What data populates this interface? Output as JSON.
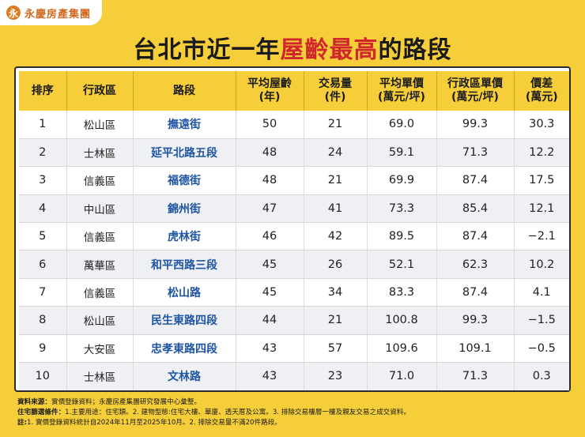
{
  "brand": {
    "name": "永慶房產集團",
    "mark": "永"
  },
  "title": {
    "prefix": "台北市近一年",
    "highlight": "屋齡最高",
    "suffix": "的路段"
  },
  "table": {
    "headers": [
      {
        "line1": "排序",
        "line2": ""
      },
      {
        "line1": "行政區",
        "line2": ""
      },
      {
        "line1": "路段",
        "line2": ""
      },
      {
        "line1": "平均屋齡",
        "line2": "(年)"
      },
      {
        "line1": "交易量",
        "line2": "(件)"
      },
      {
        "line1": "平均單價",
        "line2": "(萬元/坪)"
      },
      {
        "line1": "行政區單價",
        "line2": "(萬元/坪)"
      },
      {
        "line1": "價差",
        "line2": "(萬元)"
      }
    ],
    "rows": [
      [
        "1",
        "松山區",
        "撫遠街",
        "50",
        "21",
        "69.0",
        "99.3",
        "30.3"
      ],
      [
        "2",
        "士林區",
        "延平北路五段",
        "48",
        "24",
        "59.1",
        "71.3",
        "12.2"
      ],
      [
        "3",
        "信義區",
        "福德街",
        "48",
        "21",
        "69.9",
        "87.4",
        "17.5"
      ],
      [
        "4",
        "中山區",
        "錦州街",
        "47",
        "41",
        "73.3",
        "85.4",
        "12.1"
      ],
      [
        "5",
        "信義區",
        "虎林街",
        "46",
        "42",
        "89.5",
        "87.4",
        "−2.1"
      ],
      [
        "6",
        "萬華區",
        "和平西路三段",
        "45",
        "26",
        "52.1",
        "62.3",
        "10.2"
      ],
      [
        "7",
        "信義區",
        "松山路",
        "45",
        "34",
        "83.3",
        "87.4",
        "4.1"
      ],
      [
        "8",
        "松山區",
        "民生東路四段",
        "44",
        "21",
        "100.8",
        "99.3",
        "−1.5"
      ],
      [
        "9",
        "大安區",
        "忠孝東路四段",
        "43",
        "57",
        "109.6",
        "109.1",
        "−0.5"
      ],
      [
        "10",
        "士林區",
        "文林路",
        "43",
        "23",
        "71.0",
        "71.3",
        "0.3"
      ]
    ]
  },
  "notes": [
    {
      "label": "資料來源：",
      "text": "實價登錄資料；永慶房產集團研究發展中心彙整。"
    },
    {
      "label": "住宅篩選條件：",
      "text": "1.主要用途：住宅類。2. 建物型態:住宅大樓、華廈、透天厝及公寓。3. 排除交易樓層一樓及親友交易之成交資料。"
    },
    {
      "label": "註:",
      "text": "1. 實價登錄資料統計自2024年11月至2025年10月。2. 排除交易量不滿20件路段。"
    }
  ]
}
